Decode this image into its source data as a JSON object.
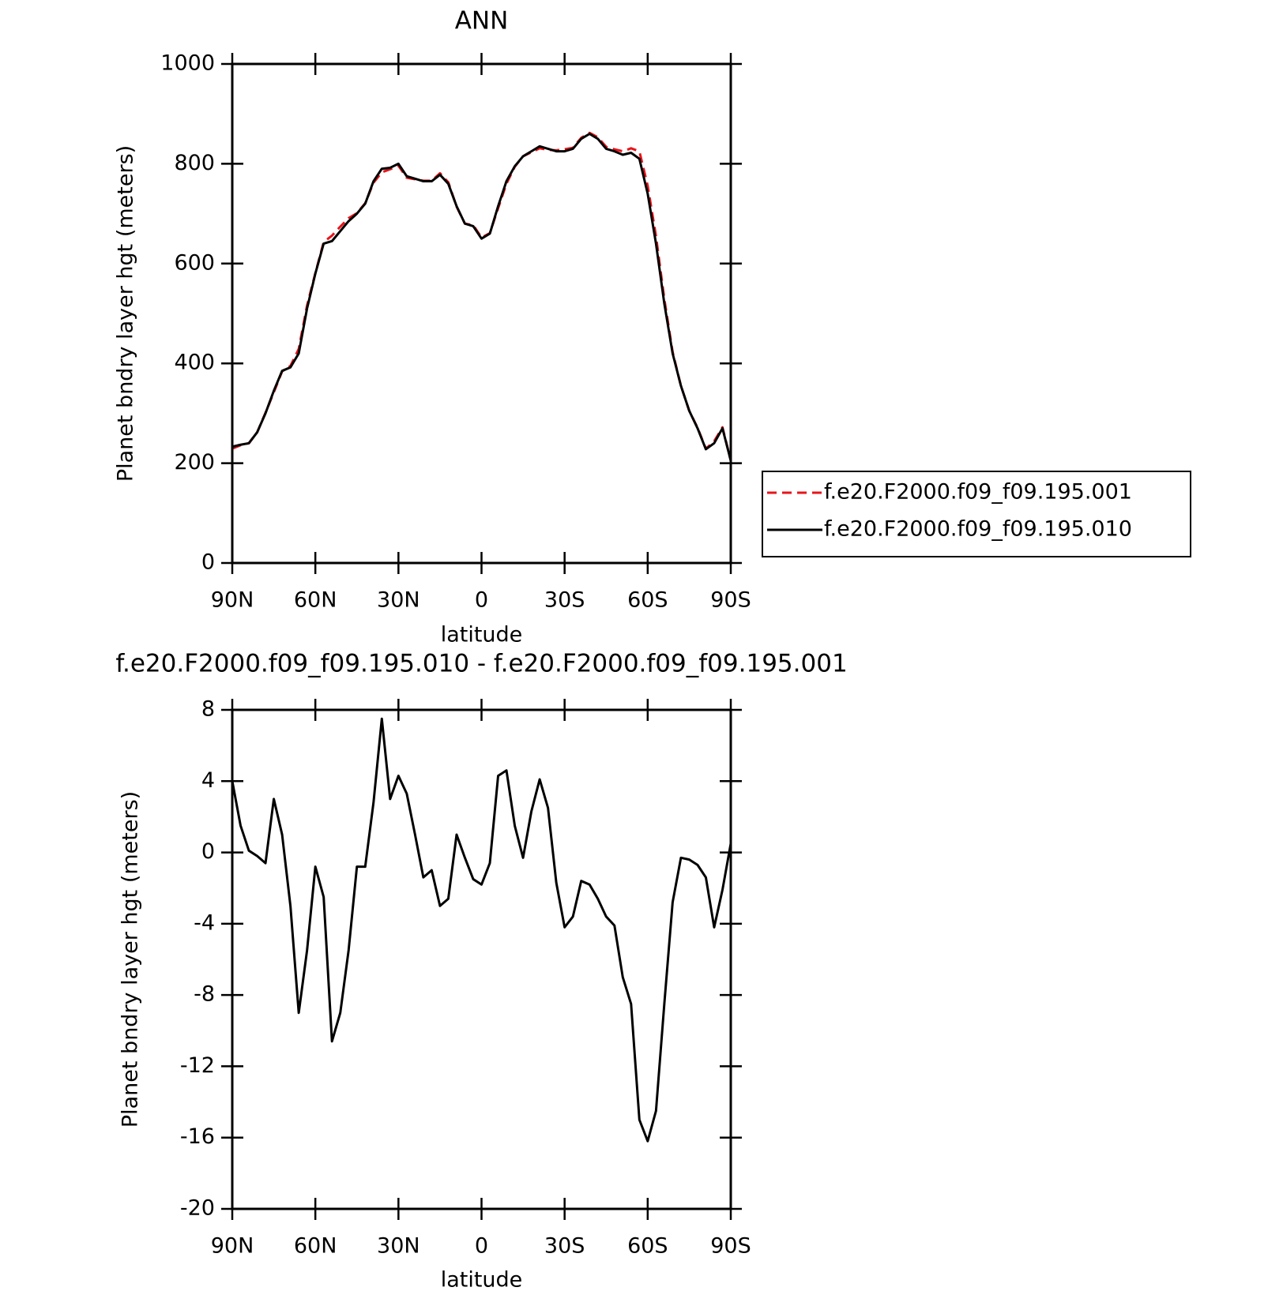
{
  "chart_data": [
    {
      "type": "line",
      "title": "ANN",
      "xlabel": "latitude",
      "ylabel": "Planet bndry layer hgt (meters)",
      "x": [
        90,
        87,
        84,
        81,
        78,
        75,
        72,
        69,
        66,
        63,
        60,
        57,
        54,
        51,
        48,
        45,
        42,
        39,
        36,
        33,
        30,
        27,
        24,
        21,
        18,
        15,
        12,
        9,
        6,
        3,
        0,
        -3,
        -6,
        -9,
        -12,
        -15,
        -18,
        -21,
        -24,
        -27,
        -30,
        -33,
        -36,
        -39,
        -42,
        -45,
        -48,
        -51,
        -54,
        -57,
        -60,
        -63,
        -66,
        -69,
        -72,
        -75,
        -78,
        -81,
        -84,
        -87,
        -90
      ],
      "series": [
        {
          "name": "f.e20.F2000.f09_f09.195.001",
          "color": "#e8141b",
          "dashed": true,
          "values": [
            229,
            236,
            240,
            262,
            301,
            342,
            384,
            395,
            429,
            516,
            581,
            643,
            656,
            674,
            691,
            701,
            721,
            762,
            783,
            789,
            796,
            772,
            769,
            766,
            766,
            781,
            763,
            714,
            680,
            677,
            652,
            661,
            711,
            760,
            794,
            815,
            823,
            831,
            828,
            827,
            829,
            832,
            852,
            862,
            853,
            834,
            829,
            825,
            831,
            825,
            756,
            655,
            529,
            423,
            355,
            305,
            271,
            229,
            244,
            272,
            205
          ]
        },
        {
          "name": "f.e20.F2000.f09_f09.195.010",
          "color": "#000000",
          "dashed": false,
          "values": [
            233,
            237,
            240,
            262,
            300,
            345,
            385,
            392,
            420,
            510,
            580,
            640,
            645,
            665,
            685,
            700,
            720,
            765,
            790,
            792,
            800,
            775,
            770,
            765,
            765,
            778,
            760,
            715,
            680,
            675,
            650,
            660,
            715,
            765,
            795,
            815,
            825,
            835,
            830,
            825,
            825,
            830,
            850,
            860,
            850,
            830,
            825,
            818,
            822,
            810,
            740,
            640,
            520,
            420,
            355,
            305,
            270,
            228,
            240,
            270,
            205
          ]
        }
      ],
      "xlim": [
        90,
        -90
      ],
      "xticks": [
        {
          "value": 90,
          "label": "90N"
        },
        {
          "value": 60,
          "label": "60N"
        },
        {
          "value": 30,
          "label": "30N"
        },
        0,
        {
          "value": -30,
          "label": "30S"
        },
        {
          "value": -60,
          "label": "60S"
        },
        {
          "value": -90,
          "label": "90S"
        }
      ],
      "ylim": [
        0,
        1000
      ],
      "yticks": [
        0,
        200,
        400,
        600,
        800,
        1000
      ],
      "legend": "right"
    },
    {
      "type": "line",
      "title": "f.e20.F2000.f09_f09.195.010 - f.e20.F2000.f09_f09.195.001",
      "xlabel": "latitude",
      "ylabel": "Planet bndry layer hgt (meters)",
      "x": [
        90,
        87,
        84,
        81,
        78,
        75,
        72,
        69,
        66,
        63,
        60,
        57,
        54,
        51,
        48,
        45,
        42,
        39,
        36,
        33,
        30,
        27,
        24,
        21,
        18,
        15,
        12,
        9,
        6,
        3,
        0,
        -3,
        -6,
        -9,
        -12,
        -15,
        -18,
        -21,
        -24,
        -27,
        -30,
        -33,
        -36,
        -39,
        -42,
        -45,
        -48,
        -51,
        -54,
        -57,
        -60,
        -63,
        -66,
        -69,
        -72,
        -75,
        -78,
        -81,
        -84,
        -87,
        -90
      ],
      "series": [
        {
          "color": "#000000",
          "dashed": false,
          "values": [
            4,
            1.5,
            0.1,
            -0.2,
            -0.6,
            3,
            1,
            -3,
            -9,
            -5.5,
            -0.8,
            -2.5,
            -10.6,
            -9,
            -5.5,
            -0.8,
            -0.8,
            2.8,
            7.5,
            3,
            4.3,
            3.3,
            1,
            -1.4,
            -1,
            -3,
            -2.6,
            1,
            -0.3,
            -1.5,
            -1.8,
            -0.6,
            4.3,
            4.6,
            1.5,
            -0.3,
            2.3,
            4.1,
            2.5,
            -1.7,
            -4.2,
            -3.6,
            -1.6,
            -1.8,
            -2.6,
            -3.6,
            -4.1,
            -7,
            -8.5,
            -15,
            -16.2,
            -14.5,
            -8.5,
            -2.8,
            -0.3,
            -0.4,
            -0.7,
            -1.4,
            -4.2,
            -2.1,
            0.5
          ]
        }
      ],
      "xlim": [
        90,
        -90
      ],
      "xticks": [
        {
          "value": 90,
          "label": "90N"
        },
        {
          "value": 60,
          "label": "60N"
        },
        {
          "value": 30,
          "label": "30N"
        },
        0,
        {
          "value": -30,
          "label": "30S"
        },
        {
          "value": -60,
          "label": "60S"
        },
        {
          "value": -90,
          "label": "90S"
        }
      ],
      "ylim": [
        -20,
        8
      ],
      "yticks": [
        -20,
        -16,
        -12,
        -8,
        -4,
        0,
        4,
        8
      ]
    }
  ]
}
